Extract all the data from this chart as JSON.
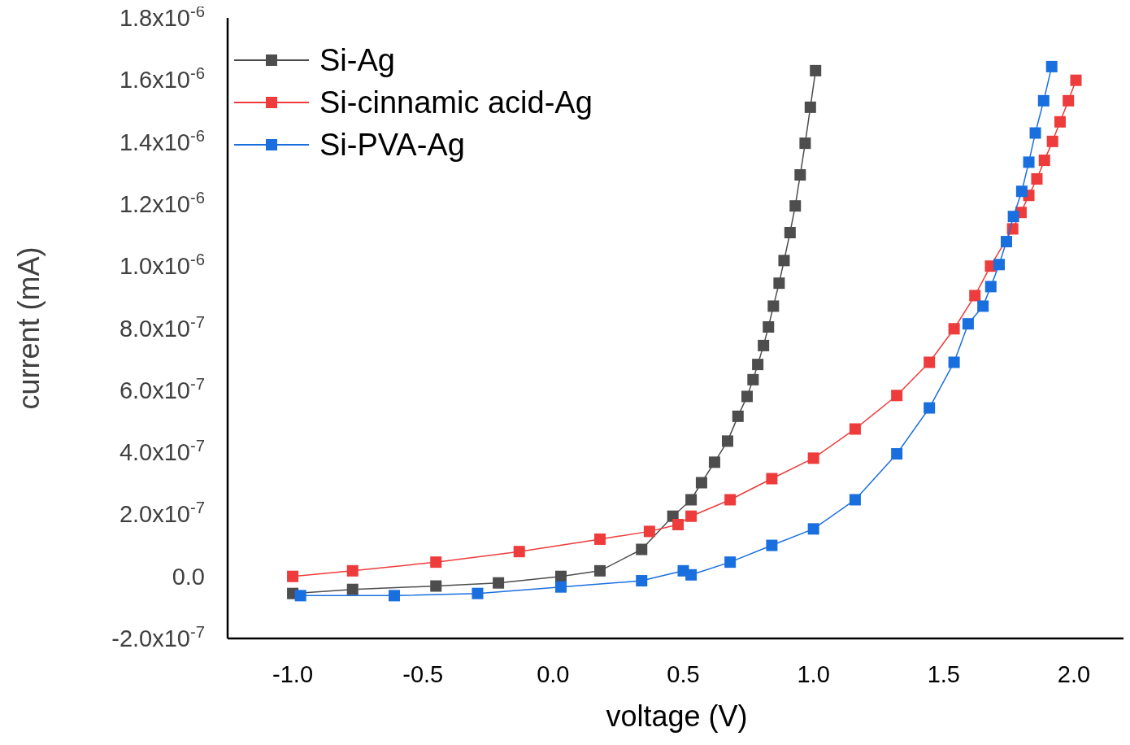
{
  "chart_data": {
    "type": "line",
    "xlabel": "voltage (V)",
    "ylabel": "current (mA)",
    "xlim": [
      -1.25,
      2.2
    ],
    "ylim": [
      -2e-07,
      1.8e-06
    ],
    "xticks": [
      {
        "value": -1,
        "label": "-1.0"
      },
      {
        "value": -0.5,
        "label": "-0.5"
      },
      {
        "value": 0,
        "label": "0.0"
      },
      {
        "value": 0.5,
        "label": "0.5"
      },
      {
        "value": 1,
        "label": "1.0"
      },
      {
        "value": 1.5,
        "label": "1.5"
      },
      {
        "value": 2,
        "label": "2.0"
      }
    ],
    "yticks": [
      {
        "value": -2e-07,
        "label": "-2.0x10$^{-7}$"
      },
      {
        "value": 0,
        "label": "0.0"
      },
      {
        "value": 2e-07,
        "label": "2.0x10$^{-7}$"
      },
      {
        "value": 4e-07,
        "label": "4.0x10$^{-7}$"
      },
      {
        "value": 6e-07,
        "label": "6.0x10$^{-7}$"
      },
      {
        "value": 8e-07,
        "label": "8.0x10$^{-7}$"
      },
      {
        "value": 1e-06,
        "label": "1.0x10$^{-6}$"
      },
      {
        "value": 1.2e-06,
        "label": "1.2x10$^{-6}$"
      },
      {
        "value": 1.4e-06,
        "label": "1.4x10$^{-6}$"
      },
      {
        "value": 1.6e-06,
        "label": "1.6x10$^{-6}$"
      },
      {
        "value": 1.8e-06,
        "label": "1.8x10$^{-6}$"
      }
    ],
    "grid": false,
    "legend": "top left",
    "marker": "square",
    "series": [
      {
        "name": "Si-Ag",
        "color": "#4d4d4d",
        "x": [
          -1.0,
          -0.77,
          -0.45,
          -0.21,
          0.03,
          0.18,
          0.34,
          0.46,
          0.53,
          0.57,
          0.62,
          0.67,
          0.71,
          0.745,
          0.768,
          0.786,
          0.808,
          0.827,
          0.846,
          0.868,
          0.887,
          0.91,
          0.93,
          0.949,
          0.968,
          0.988,
          1.008
        ],
        "values": [
          -5.5e-08,
          -4.2e-08,
          -3.1e-08,
          -2.1e-08,
          0,
          1.8e-08,
          8.7e-08,
          1.94e-07,
          2.47e-07,
          3.02e-07,
          3.68e-07,
          4.36e-07,
          5.16e-07,
          5.8e-07,
          6.34e-07,
          6.83e-07,
          7.44e-07,
          8.04e-07,
          8.71e-07,
          9.45e-07,
          1.018e-06,
          1.108e-06,
          1.194e-06,
          1.294e-06,
          1.396e-06,
          1.512e-06,
          1.63e-06
        ]
      },
      {
        "name": "Si-cinnamic acid-Ag",
        "color": "#ee3b3b",
        "x": [
          -1.0,
          -0.77,
          -0.45,
          -0.13,
          0.18,
          0.37,
          0.48,
          0.53,
          0.68,
          0.84,
          1.0,
          1.16,
          1.32,
          1.445,
          1.54,
          1.62,
          1.68,
          1.765,
          1.797,
          1.827,
          1.858,
          1.887,
          1.918,
          1.947,
          1.979,
          2.008
        ],
        "values": [
          0,
          1.8e-08,
          4.6e-08,
          8e-08,
          1.2e-07,
          1.45e-07,
          1.67e-07,
          1.94e-07,
          2.47e-07,
          3.15e-07,
          3.81e-07,
          4.75e-07,
          5.83e-07,
          6.9e-07,
          7.98e-07,
          9.05e-07,
          1e-06,
          1.12e-06,
          1.173e-06,
          1.228e-06,
          1.281e-06,
          1.341e-06,
          1.402e-06,
          1.465e-06,
          1.533e-06,
          1.599e-06
        ]
      },
      {
        "name": "Si-PVA-Ag",
        "color": "#1a6fdf",
        "x": [
          -0.97,
          -0.61,
          -0.29,
          0.03,
          0.34,
          0.5,
          0.53,
          0.68,
          0.84,
          1.0,
          1.16,
          1.32,
          1.445,
          1.54,
          1.594,
          1.651,
          1.681,
          1.713,
          1.741,
          1.768,
          1.8,
          1.827,
          1.852,
          1.884,
          1.915
        ],
        "values": [
          -6.2e-08,
          -6.2e-08,
          -5.5e-08,
          -3.4e-08,
          -1.4e-08,
          1.8e-08,
          5e-09,
          4.6e-08,
          1e-07,
          1.53e-07,
          2.47e-07,
          3.95e-07,
          5.43e-07,
          6.9e-07,
          8.14e-07,
          8.71e-07,
          9.34e-07,
          1.005e-06,
          1.079e-06,
          1.16e-06,
          1.241e-06,
          1.335e-06,
          1.429e-06,
          1.533e-06,
          1.643e-06
        ]
      }
    ]
  }
}
